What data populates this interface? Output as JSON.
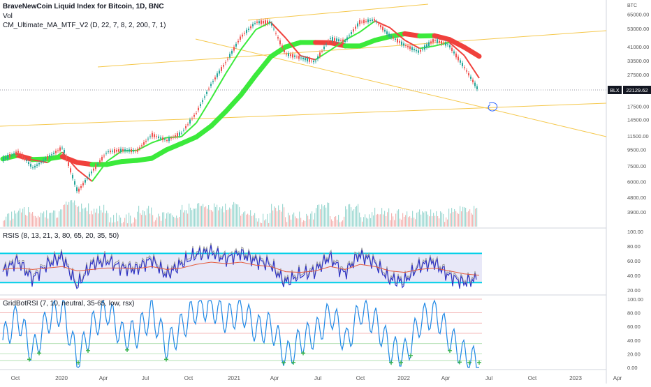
{
  "header": {
    "title": "BraveNewCoin Liquid Index for Bitcoin, 1D, BNC",
    "vol_label": "Vol",
    "indicator_ma": "CM_Ultimate_MA_MTF_V2 (D, 22, 7, 8, 2, 200, 7, 1)",
    "indicator_rsis": "RSIS (8, 13, 21, 3, 80, 65, 20, 35, 50)",
    "indicator_gridbot": "GridBotRSI (7, 10, neutral, 35-65, low, rsx)"
  },
  "price_axis": {
    "currency": "BTC",
    "ticks": [
      "65000.00",
      "53000.00",
      "41000.00",
      "33500.00",
      "27500.00",
      "17500.00",
      "14500.00",
      "11500.00",
      "9500.00",
      "7500.00",
      "6000.00",
      "4800.00",
      "3900.00"
    ],
    "last_price_tag": "BLX",
    "last_price": "22129.62"
  },
  "time_axis": {
    "ticks": [
      "Oct",
      "2020",
      "Apr",
      "Jul",
      "Oct",
      "2021",
      "Apr",
      "Jul",
      "Oct",
      "2022",
      "Apr",
      "Jul",
      "Oct",
      "2023",
      "Apr"
    ]
  },
  "rsis_axis": {
    "ticks": [
      "100.00",
      "80.00",
      "60.00",
      "40.00",
      "20.00"
    ]
  },
  "grid_axis": {
    "ticks": [
      "100.00",
      "80.00",
      "60.00",
      "40.00",
      "20.00",
      "0.00"
    ]
  },
  "colors": {
    "up_candle": "#26a69a",
    "down_candle": "#ef5350",
    "ma_up": "#3bea3b",
    "ma_down": "#f0413c",
    "trendline": "#f5c84c",
    "rsi_band": "#00cfe8",
    "rsi_line": "#2a2ec8",
    "grid_line": "#1e88e5"
  },
  "chart_data": [
    {
      "type": "line",
      "title": "BraveNewCoin Liquid Index for Bitcoin, 1D, BNC",
      "y_scale": "log",
      "ylim": [
        3500,
        72000
      ],
      "x": [
        "2019-10",
        "2019-11",
        "2019-12",
        "2020-01",
        "2020-02",
        "2020-03",
        "2020-04",
        "2020-05",
        "2020-06",
        "2020-07",
        "2020-08",
        "2020-09",
        "2020-10",
        "2020-11",
        "2020-12",
        "2021-01",
        "2021-02",
        "2021-03",
        "2021-04",
        "2021-05",
        "2021-06",
        "2021-07",
        "2021-08",
        "2021-09",
        "2021-10",
        "2021-11",
        "2021-12",
        "2022-01",
        "2022-02",
        "2022-03",
        "2022-04",
        "2022-05",
        "2022-06"
      ],
      "series": [
        {
          "values": [
            8300,
            9200,
            7300,
            8500,
            9800,
            5200,
            7000,
            9200,
            9400,
            9300,
            11700,
            10800,
            12000,
            16000,
            24000,
            33000,
            47000,
            58000,
            58000,
            37000,
            35000,
            33000,
            46000,
            44000,
            58000,
            60000,
            48000,
            42000,
            38000,
            45000,
            42000,
            31000,
            22130
          ]
        }
      ],
      "last_value": 22129.62
    },
    {
      "type": "line",
      "title": "RSIS (8, 13, 21, 3, 80, 65, 20, 35, 50)",
      "ylim": [
        15,
        100
      ],
      "bands": [
        70,
        30
      ],
      "x": [
        "2019-10",
        "2019-11",
        "2019-12",
        "2020-01",
        "2020-02",
        "2020-03",
        "2020-04",
        "2020-05",
        "2020-06",
        "2020-07",
        "2020-08",
        "2020-09",
        "2020-10",
        "2020-11",
        "2020-12",
        "2021-01",
        "2021-02",
        "2021-03",
        "2021-04",
        "2021-05",
        "2021-06",
        "2021-07",
        "2021-08",
        "2021-09",
        "2021-10",
        "2021-11",
        "2021-12",
        "2022-01",
        "2022-02",
        "2022-03",
        "2022-04",
        "2022-05",
        "2022-06"
      ],
      "series": [
        {
          "values": [
            45,
            60,
            35,
            55,
            65,
            25,
            55,
            60,
            50,
            48,
            62,
            40,
            55,
            68,
            72,
            62,
            70,
            60,
            55,
            30,
            40,
            45,
            65,
            42,
            68,
            58,
            35,
            30,
            52,
            58,
            40,
            30,
            35
          ]
        },
        {
          "values": [
            48,
            50,
            48,
            50,
            52,
            46,
            48,
            50,
            50,
            49,
            52,
            48,
            50,
            55,
            58,
            56,
            58,
            54,
            52,
            45,
            44,
            46,
            52,
            48,
            55,
            52,
            46,
            44,
            48,
            50,
            46,
            42,
            40
          ]
        }
      ]
    },
    {
      "type": "line",
      "title": "GridBotRSI (7, 10, neutral, 35-65, low, rsx)",
      "ylim": [
        0,
        100
      ],
      "x": [
        "2019-10",
        "2019-11",
        "2019-12",
        "2020-01",
        "2020-02",
        "2020-03",
        "2020-04",
        "2020-05",
        "2020-06",
        "2020-07",
        "2020-08",
        "2020-09",
        "2020-10",
        "2020-11",
        "2020-12",
        "2021-01",
        "2021-02",
        "2021-03",
        "2021-04",
        "2021-05",
        "2021-06",
        "2021-07",
        "2021-08",
        "2021-09",
        "2021-10",
        "2021-11",
        "2021-12",
        "2022-01",
        "2022-02",
        "2022-03",
        "2022-04",
        "2022-05",
        "2022-06"
      ],
      "series": [
        {
          "values": [
            40,
            75,
            20,
            70,
            85,
            10,
            60,
            85,
            45,
            50,
            80,
            30,
            60,
            88,
            90,
            70,
            85,
            55,
            60,
            15,
            40,
            50,
            80,
            35,
            85,
            65,
            25,
            20,
            70,
            80,
            40,
            15,
            5
          ]
        }
      ]
    }
  ]
}
